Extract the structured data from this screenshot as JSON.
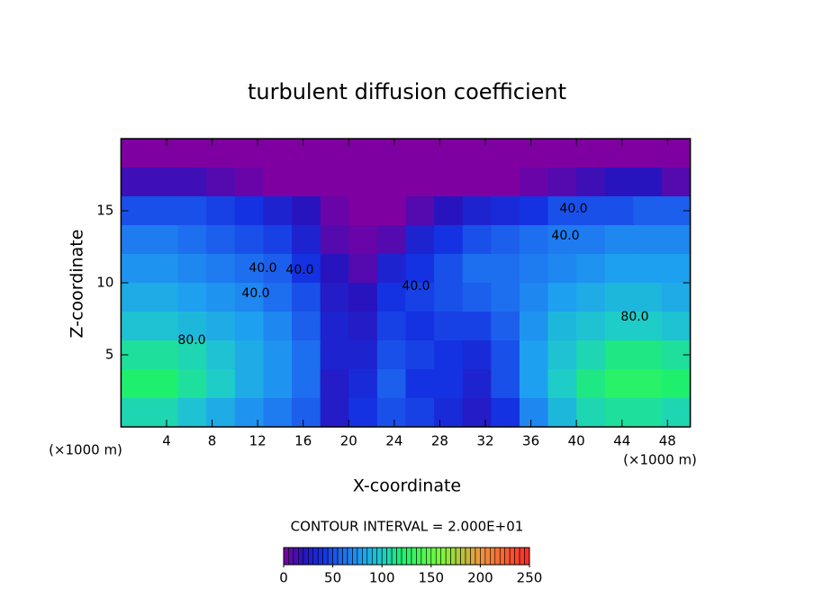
{
  "chart_data": {
    "type": "contour",
    "title": "turbulent diffusion coefficient",
    "x_label": "X-coordinate",
    "y_label": "Z-coordinate",
    "unit_label": "(×1000 m)",
    "xlim": [
      0,
      50
    ],
    "ylim": [
      0,
      20
    ],
    "xticks": [
      4,
      8,
      12,
      16,
      20,
      24,
      28,
      32,
      36,
      40,
      44,
      48
    ],
    "yticks": [
      5,
      10,
      15
    ],
    "x_edges": [
      0,
      2.5,
      5,
      7.5,
      10,
      12.5,
      15,
      17.5,
      20,
      22.5,
      25,
      27.5,
      30,
      32.5,
      35,
      37.5,
      40,
      42.5,
      45,
      47.5,
      50
    ],
    "y_edges": [
      20,
      18,
      16,
      14,
      12,
      10,
      8,
      6,
      4,
      2,
      0
    ],
    "z": [
      [
        0,
        0,
        0,
        0,
        0,
        0,
        0,
        0,
        0,
        0,
        0,
        0,
        0,
        0,
        0,
        0,
        0,
        0,
        0,
        0
      ],
      [
        15,
        15,
        15,
        10,
        5,
        0,
        0,
        0,
        0,
        0,
        0,
        0,
        0,
        0,
        5,
        10,
        15,
        20,
        20,
        10
      ],
      [
        50,
        50,
        50,
        45,
        40,
        30,
        20,
        5,
        0,
        0,
        10,
        20,
        30,
        35,
        40,
        50,
        50,
        50,
        55,
        55
      ],
      [
        65,
        65,
        60,
        55,
        50,
        45,
        30,
        10,
        5,
        10,
        30,
        40,
        50,
        55,
        60,
        65,
        65,
        70,
        70,
        70
      ],
      [
        75,
        75,
        70,
        65,
        60,
        55,
        40,
        20,
        10,
        30,
        40,
        50,
        60,
        60,
        65,
        70,
        75,
        80,
        80,
        80
      ],
      [
        85,
        85,
        80,
        75,
        70,
        60,
        50,
        25,
        20,
        40,
        45,
        50,
        55,
        60,
        70,
        80,
        85,
        90,
        90,
        85
      ],
      [
        95,
        95,
        90,
        85,
        80,
        70,
        55,
        30,
        25,
        45,
        40,
        45,
        45,
        55,
        75,
        90,
        95,
        100,
        100,
        95
      ],
      [
        110,
        110,
        105,
        95,
        85,
        75,
        60,
        30,
        30,
        50,
        45,
        40,
        35,
        50,
        80,
        95,
        105,
        115,
        115,
        110
      ],
      [
        120,
        120,
        110,
        100,
        85,
        75,
        60,
        25,
        35,
        55,
        40,
        40,
        30,
        50,
        80,
        100,
        115,
        125,
        125,
        120
      ],
      [
        105,
        105,
        95,
        85,
        75,
        65,
        55,
        25,
        40,
        50,
        45,
        35,
        25,
        40,
        70,
        90,
        105,
        110,
        110,
        105
      ]
    ],
    "contour_labels": [
      "80.0",
      "80.0",
      "40.0",
      "40.0",
      "40.0",
      "40.0",
      "40.0",
      "40.0"
    ],
    "contour_interval_label": "CONTOUR INTERVAL = 2.000E+01",
    "colorbar_lim": [
      0,
      250
    ],
    "colorbar_ticks": [
      0,
      50,
      100,
      150,
      200,
      250
    ]
  }
}
